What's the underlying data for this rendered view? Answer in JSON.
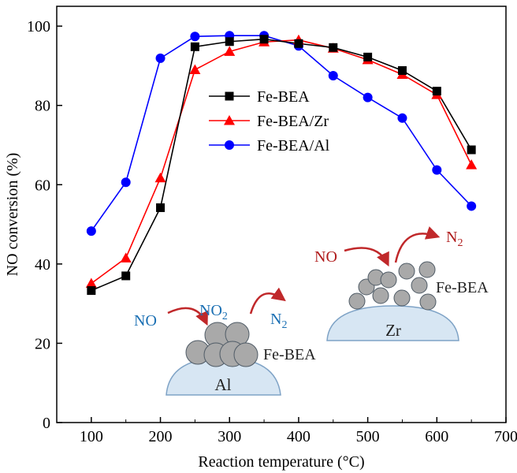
{
  "chart_data": {
    "type": "line",
    "xlabel": "Reaction temperature (°C)",
    "ylabel": "NO conversion (%)",
    "xlim": [
      50,
      700
    ],
    "ylim": [
      0,
      105
    ],
    "xticks": [
      100,
      200,
      300,
      400,
      500,
      600,
      700
    ],
    "yticks": [
      0,
      20,
      40,
      60,
      80,
      100
    ],
    "grid": false,
    "legend_position": "upper-center",
    "series": [
      {
        "name": "Fe-BEA",
        "color": "#000000",
        "marker": "square",
        "x": [
          100,
          150,
          200,
          250,
          300,
          350,
          400,
          450,
          500,
          550,
          600,
          650
        ],
        "y": [
          33.3,
          37,
          54.2,
          94.8,
          96.1,
          96.7,
          95.6,
          94.6,
          92.2,
          88.8,
          83.6,
          68.8
        ]
      },
      {
        "name": "Fe-BEA/Zr",
        "color": "#ff0000",
        "marker": "triangle",
        "x": [
          100,
          150,
          200,
          250,
          300,
          350,
          400,
          450,
          500,
          550,
          600,
          650
        ],
        "y": [
          35.1,
          41.5,
          61.7,
          89,
          93.6,
          96,
          96.5,
          94.4,
          91.5,
          87.8,
          82.7,
          65
        ]
      },
      {
        "name": "Fe-BEA/Al",
        "color": "#0000ff",
        "marker": "circle",
        "x": [
          100,
          150,
          200,
          250,
          300,
          350,
          400,
          450,
          500,
          550,
          600,
          650
        ],
        "y": [
          48.3,
          60.6,
          91.9,
          97.4,
          97.6,
          97.6,
          95,
          87.5,
          82,
          76.8,
          63.7,
          54.6
        ]
      }
    ]
  },
  "insets": {
    "al": {
      "no_label": "NO",
      "no2_base": "NO",
      "no2_sub": "2",
      "n2_base": "N",
      "n2_sub": "2",
      "catalyst_label": "Fe-BEA",
      "support_label": "Al"
    },
    "zr": {
      "no_label": "NO",
      "n2_base": "N",
      "n2_sub": "2",
      "catalyst_label": "Fe-BEA",
      "support_label": "Zr"
    },
    "colors": {
      "no_al": "#1a6fb3",
      "no_zr": "#b01c1c",
      "no2": "#1a6fb3",
      "n2_al": "#1a6fb3",
      "n2_zr": "#b01c1c",
      "arrow": "#c0282a",
      "support_fill": "#d7e6f3",
      "support_stroke": "#7fa3c6",
      "particle_fill": "#a9a9a9",
      "particle_stroke": "#4f5b66"
    }
  }
}
